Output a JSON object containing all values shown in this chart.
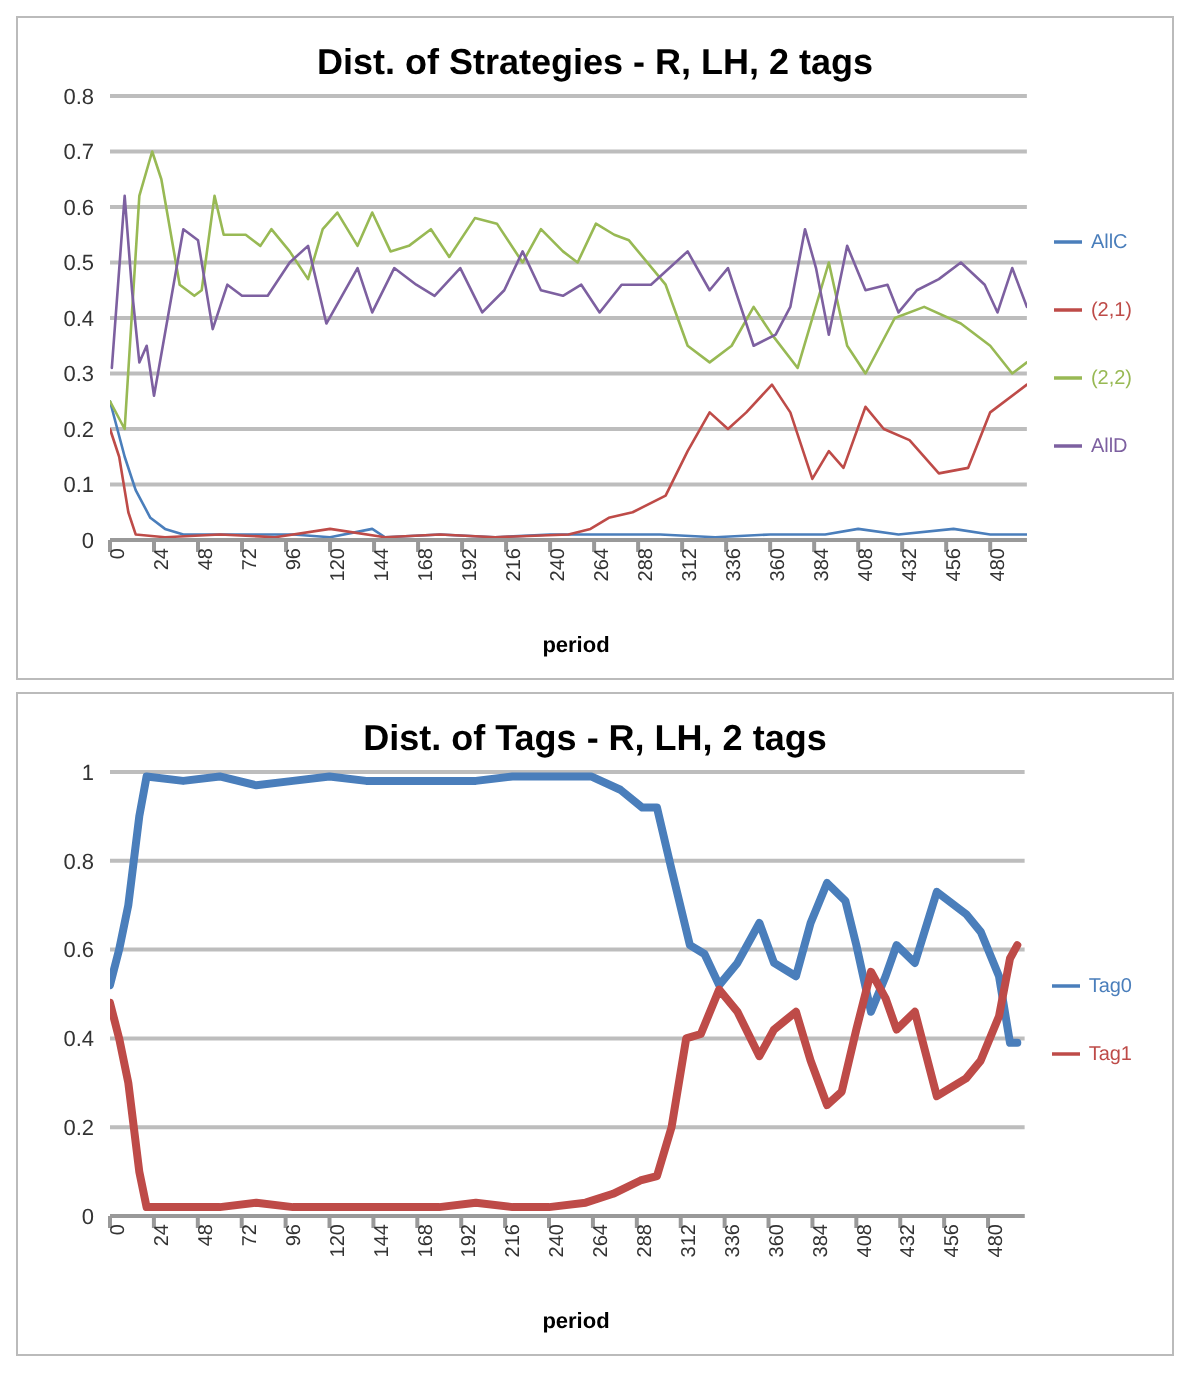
{
  "chart_data": [
    {
      "type": "line",
      "title": "Dist. of Strategies - R, LH, 2 tags",
      "xlabel": "period",
      "xlim": [
        0,
        500
      ],
      "xticks": [
        0,
        24,
        48,
        72,
        96,
        120,
        144,
        168,
        192,
        216,
        240,
        264,
        288,
        312,
        336,
        360,
        384,
        408,
        432,
        456,
        480
      ],
      "ylim": [
        0,
        0.8
      ],
      "yticks": [
        0,
        0.1,
        0.2,
        0.3,
        0.4,
        0.5,
        0.6,
        0.7,
        0.8
      ],
      "grid": "y",
      "legend": "right",
      "marker": "none",
      "line_style": "solid",
      "series": [
        {
          "name": "AllC",
          "color": "#4a7ebb",
          "x": [
            0,
            8,
            14,
            22,
            30,
            40,
            60,
            80,
            100,
            120,
            143,
            150,
            180,
            210,
            240,
            270,
            300,
            330,
            360,
            390,
            408,
            430,
            460,
            480,
            500
          ],
          "values": [
            0.25,
            0.15,
            0.09,
            0.04,
            0.02,
            0.01,
            0.01,
            0.01,
            0.01,
            0.005,
            0.02,
            0.005,
            0.01,
            0.005,
            0.01,
            0.01,
            0.01,
            0.005,
            0.01,
            0.01,
            0.02,
            0.01,
            0.02,
            0.01,
            0.01
          ]
        },
        {
          "name": "(2,1)",
          "color": "#be4b48",
          "x": [
            0,
            5,
            10,
            14,
            30,
            60,
            90,
            120,
            150,
            180,
            210,
            250,
            262,
            272,
            285,
            303,
            315,
            327,
            337,
            347,
            361,
            371,
            383,
            392,
            400,
            412,
            422,
            436,
            452,
            468,
            480,
            500
          ],
          "values": [
            0.2,
            0.15,
            0.05,
            0.01,
            0.005,
            0.01,
            0.005,
            0.02,
            0.005,
            0.01,
            0.005,
            0.01,
            0.02,
            0.04,
            0.05,
            0.08,
            0.16,
            0.23,
            0.2,
            0.23,
            0.28,
            0.23,
            0.11,
            0.16,
            0.13,
            0.24,
            0.2,
            0.18,
            0.12,
            0.13,
            0.23,
            0.28
          ]
        },
        {
          "name": "(2,2)",
          "color": "#98b954",
          "x": [
            0,
            8,
            16,
            23,
            28,
            38,
            46,
            50,
            57,
            62,
            74,
            82,
            88,
            98,
            108,
            116,
            124,
            135,
            143,
            153,
            163,
            175,
            185,
            199,
            211,
            225,
            235,
            247,
            255,
            265,
            275,
            283,
            303,
            315,
            327,
            339,
            351,
            361,
            375,
            392,
            402,
            412,
            428,
            444,
            464,
            480,
            492,
            500
          ],
          "values": [
            0.25,
            0.2,
            0.62,
            0.7,
            0.65,
            0.46,
            0.44,
            0.45,
            0.62,
            0.55,
            0.55,
            0.53,
            0.56,
            0.52,
            0.47,
            0.56,
            0.59,
            0.53,
            0.59,
            0.52,
            0.53,
            0.56,
            0.51,
            0.58,
            0.57,
            0.5,
            0.56,
            0.52,
            0.5,
            0.57,
            0.55,
            0.54,
            0.46,
            0.35,
            0.32,
            0.35,
            0.42,
            0.37,
            0.31,
            0.5,
            0.35,
            0.3,
            0.4,
            0.42,
            0.39,
            0.35,
            0.3,
            0.32
          ]
        },
        {
          "name": "AllD",
          "color": "#7d60a0",
          "x": [
            1,
            8,
            12,
            16,
            20,
            24,
            32,
            40,
            48,
            56,
            64,
            72,
            86,
            98,
            108,
            118,
            135,
            143,
            155,
            167,
            177,
            191,
            203,
            215,
            225,
            235,
            247,
            257,
            267,
            279,
            295,
            315,
            327,
            337,
            351,
            363,
            371,
            379,
            385,
            392,
            402,
            412,
            424,
            430,
            440,
            452,
            464,
            477,
            484,
            492,
            500
          ],
          "values": [
            0.31,
            0.62,
            0.45,
            0.32,
            0.35,
            0.26,
            0.41,
            0.56,
            0.54,
            0.38,
            0.46,
            0.44,
            0.44,
            0.5,
            0.53,
            0.39,
            0.49,
            0.41,
            0.49,
            0.46,
            0.44,
            0.49,
            0.41,
            0.45,
            0.52,
            0.45,
            0.44,
            0.46,
            0.41,
            0.46,
            0.46,
            0.52,
            0.45,
            0.49,
            0.35,
            0.37,
            0.42,
            0.56,
            0.49,
            0.37,
            0.53,
            0.45,
            0.46,
            0.41,
            0.45,
            0.47,
            0.5,
            0.46,
            0.41,
            0.49,
            0.42
          ]
        }
      ]
    },
    {
      "type": "line",
      "title": "Dist. of Tags - R, LH, 2 tags",
      "xlabel": "period",
      "xlim": [
        0,
        500
      ],
      "xticks": [
        0,
        24,
        48,
        72,
        96,
        120,
        144,
        168,
        192,
        216,
        240,
        264,
        288,
        312,
        336,
        360,
        384,
        408,
        432,
        456,
        480
      ],
      "ylim": [
        0,
        1
      ],
      "yticks": [
        0,
        0.2,
        0.4,
        0.6,
        0.8,
        1
      ],
      "grid": "y",
      "legend": "right",
      "marker": "none",
      "line_style": "solid",
      "series": [
        {
          "name": "Tag0",
          "color": "#4a7ebb",
          "x": [
            0,
            5,
            10,
            16,
            20,
            40,
            60,
            80,
            100,
            120,
            140,
            160,
            180,
            200,
            220,
            240,
            263,
            279,
            291,
            299,
            307,
            317,
            325,
            333,
            343,
            355,
            363,
            375,
            383,
            392,
            402,
            408,
            416,
            424,
            430,
            440,
            452,
            468,
            476,
            486,
            492,
            496
          ],
          "values": [
            0.52,
            0.6,
            0.7,
            0.9,
            0.99,
            0.98,
            0.99,
            0.97,
            0.98,
            0.99,
            0.98,
            0.98,
            0.98,
            0.98,
            0.99,
            0.99,
            0.99,
            0.96,
            0.92,
            0.92,
            0.78,
            0.61,
            0.59,
            0.52,
            0.57,
            0.66,
            0.57,
            0.54,
            0.66,
            0.75,
            0.71,
            0.61,
            0.46,
            0.54,
            0.61,
            0.57,
            0.73,
            0.68,
            0.64,
            0.54,
            0.39,
            0.39
          ]
        },
        {
          "name": "Tag1",
          "color": "#be4b48",
          "x": [
            0,
            5,
            10,
            16,
            20,
            40,
            60,
            80,
            100,
            120,
            140,
            160,
            180,
            200,
            220,
            240,
            260,
            275,
            290,
            299,
            307,
            315,
            323,
            333,
            343,
            355,
            363,
            375,
            383,
            392,
            400,
            408,
            416,
            424,
            430,
            440,
            452,
            468,
            476,
            486,
            492,
            496
          ],
          "values": [
            0.48,
            0.4,
            0.3,
            0.1,
            0.02,
            0.02,
            0.02,
            0.03,
            0.02,
            0.02,
            0.02,
            0.02,
            0.02,
            0.03,
            0.02,
            0.02,
            0.03,
            0.05,
            0.08,
            0.09,
            0.2,
            0.4,
            0.41,
            0.51,
            0.46,
            0.36,
            0.42,
            0.46,
            0.35,
            0.25,
            0.28,
            0.42,
            0.55,
            0.49,
            0.42,
            0.46,
            0.27,
            0.31,
            0.35,
            0.45,
            0.58,
            0.61
          ]
        }
      ]
    }
  ]
}
